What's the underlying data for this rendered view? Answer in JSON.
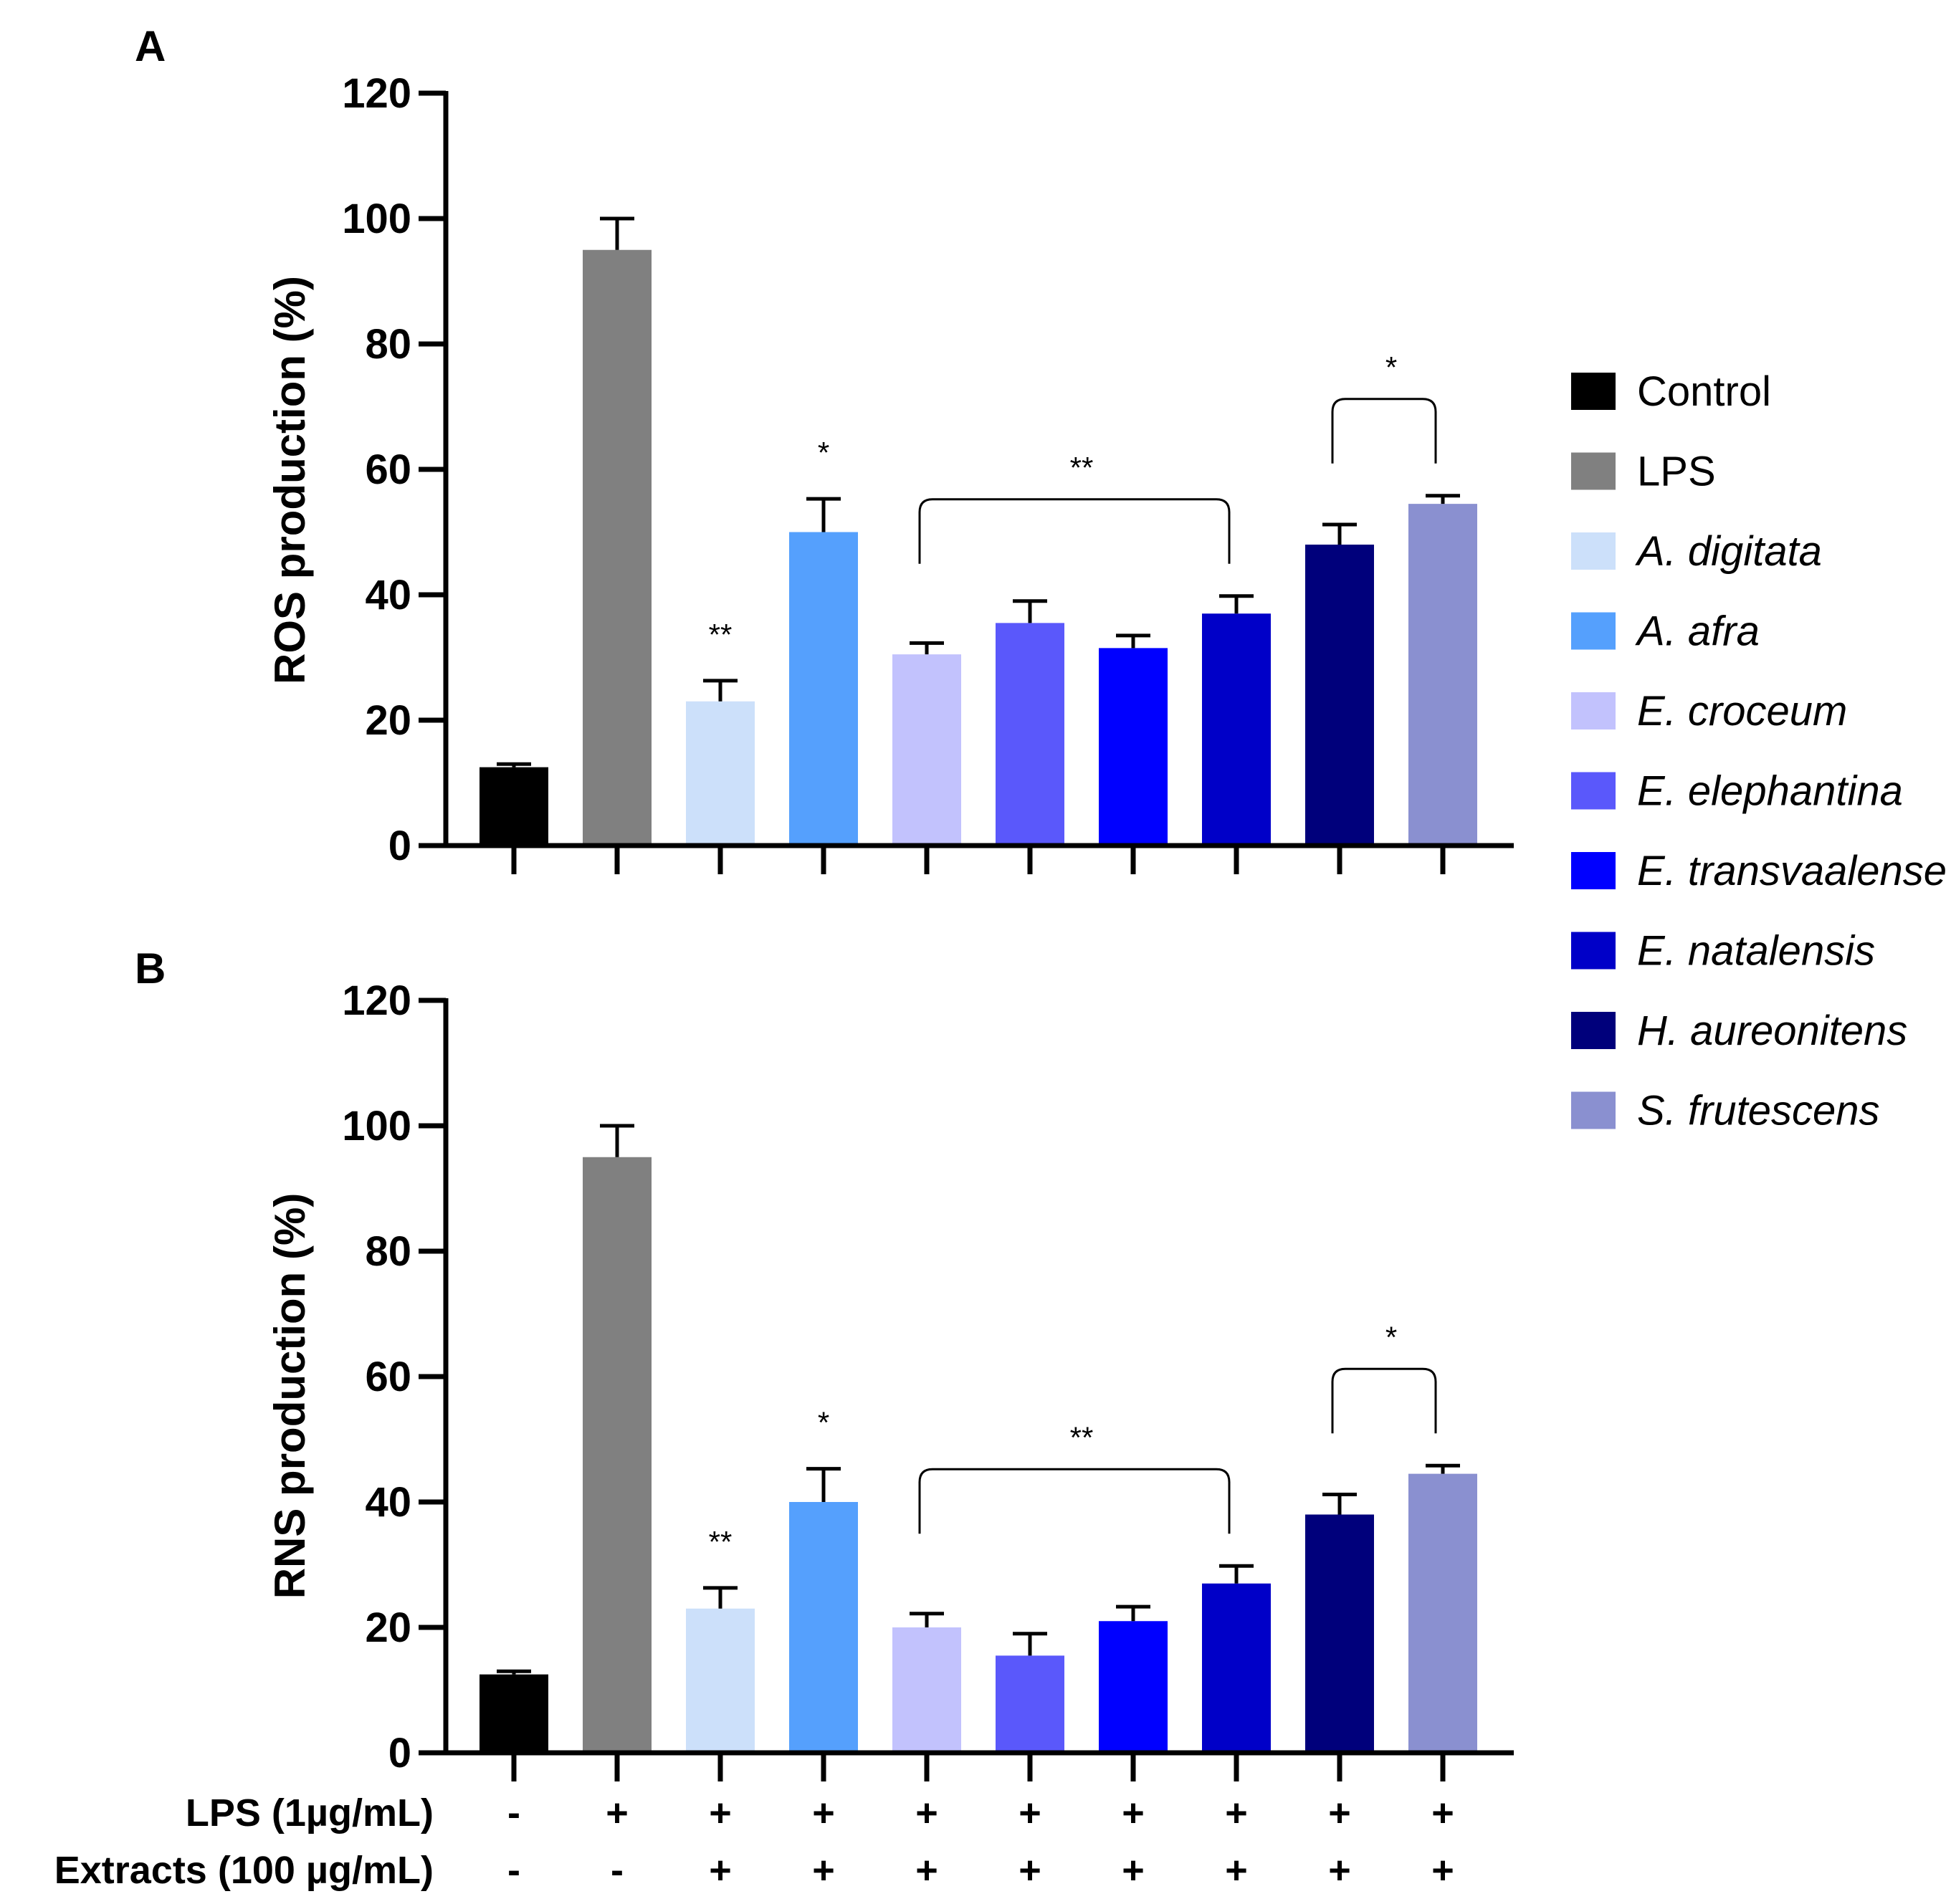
{
  "chart_data": [
    {
      "type": "bar",
      "panel": "A",
      "ylabel": "ROS production (%)",
      "ylim": [
        0,
        120
      ],
      "yticks": [
        0,
        20,
        40,
        60,
        80,
        100,
        120
      ],
      "categories": [
        "Control",
        "LPS",
        "A. digitata",
        "A. afra",
        "E. croceum",
        "E. elephantina",
        "E. transvaalense",
        "E. natalensis",
        "H. aureonitens",
        "S. frutescens"
      ],
      "values": [
        12.5,
        95,
        23,
        50,
        30.5,
        35.5,
        31.5,
        37,
        48,
        54.5
      ],
      "errors": [
        0.5,
        5,
        3.3,
        5.3,
        1.8,
        3.5,
        2,
        2.8,
        3.2,
        1.3
      ],
      "annotations": [
        {
          "text": "**",
          "bar": 2
        },
        {
          "text": "*",
          "bar": 3
        },
        {
          "text": "**",
          "bracket": [
            4,
            7
          ]
        },
        {
          "text": "*",
          "bracket": [
            8,
            9
          ]
        }
      ]
    },
    {
      "type": "bar",
      "panel": "B",
      "ylabel": "RNS production (%)",
      "ylim": [
        0,
        120
      ],
      "yticks": [
        0,
        20,
        40,
        60,
        80,
        100,
        120
      ],
      "categories": [
        "Control",
        "LPS",
        "A. digitata",
        "A. afra",
        "E. croceum",
        "E. elephantina",
        "E. transvaalense",
        "E. natalensis",
        "H. aureonitens",
        "S. frutescens"
      ],
      "values": [
        12.5,
        95,
        23,
        40,
        20,
        15.5,
        21,
        27,
        38,
        44.5
      ],
      "errors": [
        0.5,
        5,
        3.3,
        5.3,
        2.2,
        3.5,
        2.3,
        2.8,
        3.2,
        1.3
      ],
      "annotations": [
        {
          "text": "**",
          "bar": 2
        },
        {
          "text": "*",
          "bar": 3
        },
        {
          "text": "**",
          "bracket": [
            4,
            7
          ]
        },
        {
          "text": "*",
          "bracket": [
            8,
            9
          ]
        }
      ]
    }
  ],
  "legend": [
    {
      "label": "Control",
      "color": "#000000",
      "italic": false
    },
    {
      "label": "LPS",
      "color": "#808080",
      "italic": false
    },
    {
      "label": "A. digitata",
      "color": "#cce0fa",
      "italic": true
    },
    {
      "label": "A. afra",
      "color": "#55a0fd",
      "italic": true
    },
    {
      "label": "E. croceum",
      "color": "#c2c2fd",
      "italic": true
    },
    {
      "label": "E. elephantina",
      "color": "#5a58fb",
      "italic": true
    },
    {
      "label": "E. transvaalense",
      "color": "#0000ff",
      "italic": true
    },
    {
      "label": "E. natalensis",
      "color": "#0000c8",
      "italic": true
    },
    {
      "label": "H. aureonitens",
      "color": "#00007b",
      "italic": true
    },
    {
      "label": "S. frutescens",
      "color": "#8a90d0",
      "italic": true
    }
  ],
  "treatment_table": {
    "rows": [
      {
        "label": "LPS (1µg/mL)",
        "signs": [
          "-",
          "+",
          "+",
          "+",
          "+",
          "+",
          "+",
          "+",
          "+",
          "+"
        ]
      },
      {
        "label": "Extracts (100 µg/mL)",
        "signs": [
          "-",
          "-",
          "+",
          "+",
          "+",
          "+",
          "+",
          "+",
          "+",
          "+"
        ]
      }
    ]
  }
}
